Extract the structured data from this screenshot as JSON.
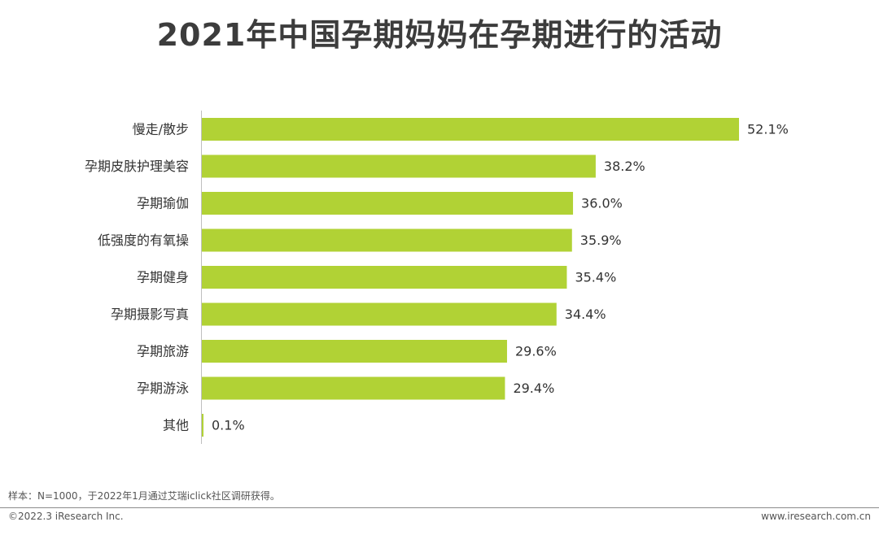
{
  "title": "2021年中国孕期妈妈在孕期进行的活动",
  "chart_data": {
    "type": "bar",
    "orientation": "horizontal",
    "categories": [
      "慢走/散步",
      "孕期皮肤护理美容",
      "孕期瑜伽",
      "低强度的有氧操",
      "孕期健身",
      "孕期摄影写真",
      "孕期旅游",
      "孕期游泳",
      "其他"
    ],
    "values": [
      52.1,
      38.2,
      36.0,
      35.9,
      35.4,
      34.4,
      29.6,
      29.4,
      0.1
    ],
    "value_labels": [
      "52.1%",
      "38.2%",
      "36.0%",
      "35.9%",
      "35.4%",
      "34.4%",
      "29.6%",
      "29.4%",
      "0.1%"
    ],
    "unit": "%",
    "bar_color": "#b1d235",
    "xlim": [
      0,
      60
    ],
    "grid": false,
    "legend": "none"
  },
  "footnote": "样本：N=1000，于2022年1月通过艾瑞iclick社区调研获得。",
  "footer": {
    "copyright": "©2022.3 iResearch Inc.",
    "website": "www.iresearch.com.cn"
  }
}
